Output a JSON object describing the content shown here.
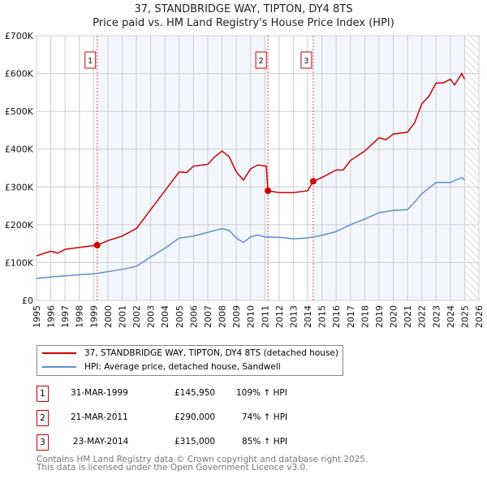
{
  "chart_data": {
    "type": "line",
    "title": "37, STANDBRIDGE WAY, TIPTON, DY4 8TS",
    "subtitle": "Price paid vs. HM Land Registry's House Price Index (HPI)",
    "xlim": [
      1995,
      2026
    ],
    "ylim": [
      0,
      700000
    ],
    "y_ticks": [
      "£0",
      "£100K",
      "£200K",
      "£300K",
      "£400K",
      "£500K",
      "£600K",
      "£700K"
    ],
    "x_ticks": [
      "1995",
      "1996",
      "1997",
      "1998",
      "1999",
      "2000",
      "2001",
      "2002",
      "2003",
      "2004",
      "2005",
      "2006",
      "2007",
      "2008",
      "2009",
      "2010",
      "2011",
      "2012",
      "2013",
      "2014",
      "2015",
      "2016",
      "2017",
      "2018",
      "2019",
      "2020",
      "2021",
      "2022",
      "2023",
      "2024",
      "2025",
      "2026"
    ],
    "grid": true,
    "series": [
      {
        "name": "37, STANDBRIDGE WAY, TIPTON, DY4 8TS (detached house)",
        "color": "#cc0000",
        "x": [
          1995,
          1996,
          1996.5,
          1997,
          1998,
          1999.25,
          2000,
          2001,
          2002,
          2003,
          2004,
          2005,
          2005.5,
          2006,
          2007,
          2007.5,
          2008,
          2008.5,
          2009,
          2009.5,
          2010,
          2010.5,
          2011.1,
          2011.22,
          2012,
          2013,
          2014,
          2014.39,
          2015,
          2016,
          2016.5,
          2017,
          2018,
          2019,
          2019.5,
          2020,
          2021,
          2021.5,
          2022,
          2022.5,
          2023,
          2023.5,
          2024,
          2024.3,
          2024.8,
          2025
        ],
        "y": [
          118000,
          130000,
          125000,
          135000,
          140000,
          145950,
          158000,
          170000,
          190000,
          240000,
          290000,
          340000,
          338000,
          355000,
          360000,
          380000,
          395000,
          380000,
          340000,
          318000,
          348000,
          358000,
          355000,
          290000,
          285000,
          285000,
          290000,
          315000,
          325000,
          345000,
          345000,
          370000,
          395000,
          430000,
          425000,
          440000,
          445000,
          470000,
          520000,
          540000,
          575000,
          575000,
          585000,
          570000,
          600000,
          585000
        ]
      },
      {
        "name": "HPI: Average price, detached house, Sandwell",
        "color": "#5b8fd4",
        "x": [
          1995,
          1996,
          1997,
          1998,
          1999,
          2000,
          2001,
          2002,
          2003,
          2004,
          2005,
          2006,
          2007,
          2008,
          2008.5,
          2009,
          2009.5,
          2010,
          2010.5,
          2011,
          2012,
          2013,
          2014,
          2015,
          2016,
          2017,
          2018,
          2019,
          2020,
          2021,
          2021.5,
          2022,
          2023,
          2023.5,
          2024,
          2024.8,
          2025
        ],
        "y": [
          58000,
          62000,
          65000,
          68000,
          70000,
          76000,
          82000,
          90000,
          115000,
          138000,
          165000,
          170000,
          180000,
          190000,
          185000,
          165000,
          153000,
          168000,
          173000,
          168000,
          167000,
          163000,
          165000,
          172000,
          182000,
          200000,
          215000,
          232000,
          238000,
          240000,
          260000,
          282000,
          312000,
          312000,
          312000,
          325000,
          318000
        ]
      }
    ],
    "sales": [
      {
        "label": "1",
        "x": 1999.25,
        "price": 145950,
        "date": "31-MAR-1999",
        "price_text": "£145,950",
        "hpi": "109% ↑ HPI"
      },
      {
        "label": "2",
        "x": 2011.22,
        "price": 290000,
        "date": "21-MAR-2011",
        "price_text": "£290,000",
        "hpi": "74% ↑ HPI"
      },
      {
        "label": "3",
        "x": 2014.39,
        "price": 315000,
        "date": "23-MAY-2014",
        "price_text": "£315,000",
        "hpi": "85% ↑ HPI"
      }
    ],
    "forecast_from": 2025,
    "legend_position": "below"
  },
  "footer": {
    "line1": "Contains HM Land Registry data © Crown copyright and database right 2025.",
    "line2": "This data is licensed under the Open Government Licence v3.0."
  }
}
